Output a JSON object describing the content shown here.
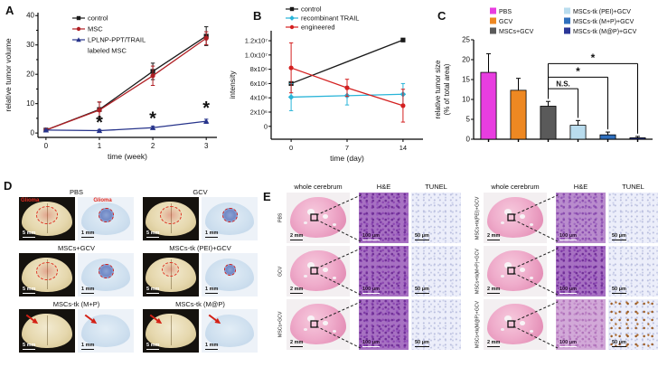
{
  "panel_labels": {
    "A": "A",
    "B": "B",
    "C": "C",
    "D": "D",
    "E": "E"
  },
  "chart_data": [
    {
      "id": "A",
      "type": "line",
      "xlabel": "time (week)",
      "ylabel": "relative tumor volume",
      "xlim": [
        -0.15,
        3.2
      ],
      "ylim": [
        -1.5,
        41
      ],
      "xticks": [
        0,
        1,
        2,
        3
      ],
      "yticks": [
        0,
        10,
        20,
        30,
        40
      ],
      "yminor": [
        5,
        15,
        25,
        35
      ],
      "legend_position": "top-left-inside",
      "grid": false,
      "series": [
        {
          "name": "control",
          "color": "#1a1a1a",
          "marker": "square",
          "x": [
            0,
            1,
            2,
            3
          ],
          "y": [
            1,
            8,
            21,
            33
          ],
          "err": [
            0.3,
            2.5,
            2.8,
            3.2
          ]
        },
        {
          "name": "MSC",
          "color": "#b01f24",
          "marker": "circle",
          "x": [
            0,
            1,
            2,
            3
          ],
          "y": [
            1,
            7.8,
            19.5,
            32.3
          ],
          "err": [
            0.3,
            2.8,
            3.3,
            2.2
          ]
        },
        {
          "name": "LPLNP-PPT/TRAIL\nlabeled MSC",
          "color": "#27348b",
          "marker": "triangle",
          "x": [
            0,
            1,
            2,
            3
          ],
          "y": [
            1,
            0.8,
            1.8,
            4
          ],
          "err": [
            0.2,
            0.4,
            0.5,
            0.7
          ]
        }
      ],
      "annotations": [
        {
          "x": 1,
          "y": 1.6,
          "text": "*"
        },
        {
          "x": 2,
          "y": 3.0,
          "text": "*"
        },
        {
          "x": 3,
          "y": 6.5,
          "text": "*"
        }
      ]
    },
    {
      "id": "B",
      "type": "line",
      "xlabel": "time (day)",
      "ylabel": "intensity",
      "xlim": [
        -2.5,
        16.5
      ],
      "ylim": [
        -1800000,
        13400000
      ],
      "xticks": [
        0,
        7,
        14
      ],
      "yticks": [
        {
          "v": 0,
          "l": "0"
        },
        {
          "v": 2000000,
          "l": "2x10⁶"
        },
        {
          "v": 4000000,
          "l": "4x10⁶"
        },
        {
          "v": 6000000,
          "l": "6x10⁶"
        },
        {
          "v": 8000000,
          "l": "8x10⁶"
        },
        {
          "v": 10000000,
          "l": "1.0x10⁷"
        },
        {
          "v": 12000000,
          "l": "1.2x10⁷"
        }
      ],
      "legend_position": "top",
      "grid": false,
      "series": [
        {
          "name": "control",
          "color": "#1a1a1a",
          "marker": "square",
          "x": [
            0,
            14
          ],
          "y": [
            6000000,
            12100000
          ],
          "err": [
            0,
            0
          ]
        },
        {
          "name": "recombinant TRAIL",
          "color": "#29b4d8",
          "marker": "diamond",
          "x": [
            0,
            7,
            14
          ],
          "y": [
            4100000,
            4300000,
            4500000
          ],
          "err": [
            1900000,
            1300000,
            1500000
          ]
        },
        {
          "name": "engineered",
          "color": "#d42020",
          "marker": "circle",
          "x": [
            0,
            7,
            14
          ],
          "y": [
            8200000,
            5400000,
            2900000
          ],
          "err": [
            3500000,
            1200000,
            2300000
          ]
        }
      ]
    },
    {
      "id": "C",
      "type": "bar",
      "ylabel_lines": [
        "relative tumor size",
        "(% of total area)"
      ],
      "ylim": [
        0,
        25
      ],
      "yticks": [
        0,
        5,
        10,
        15,
        20,
        25
      ],
      "legend_position": "top",
      "grid": false,
      "categories": [
        "PBS",
        "GCV",
        "MSCs+GCV",
        "MSCs-tk (PEI)+GCV",
        "MSCs-tk (M+P)+GCV",
        "MSCs-tk (M@P)+GCV"
      ],
      "values": [
        16.8,
        12.3,
        8.3,
        3.5,
        1.1,
        0.35
      ],
      "errors": [
        4.7,
        3.0,
        1.2,
        1.2,
        0.7,
        0.35
      ],
      "colors": [
        "#e83de0",
        "#ee8822",
        "#5a5a5a",
        "#b9dcee",
        "#2f6fbd",
        "#2a3697"
      ],
      "significance": [
        {
          "from": 2,
          "to": 3,
          "y": 12.7,
          "label": "N.S."
        },
        {
          "from": 2,
          "to": 4,
          "y": 15.6,
          "label": "*"
        },
        {
          "from": 2,
          "to": 5,
          "y": 19.0,
          "label": "*"
        }
      ]
    }
  ],
  "panelD": {
    "photo_scale": "5 mm",
    "slice_scale": "1 mm",
    "glioma_label": "Glioma",
    "groups": [
      {
        "title": "PBS"
      },
      {
        "title": "GCV"
      },
      {
        "title": "MSCs+GCV"
      },
      {
        "title": "MSCs-tk (PEI)+GCV"
      },
      {
        "title": "MSCs-tk (M+P)"
      },
      {
        "title": "MSCs-tk (M@P)"
      }
    ]
  },
  "panelE": {
    "col_headers": [
      "whole cerebrum",
      "H&E",
      "TUNEL"
    ],
    "rows_left": [
      "PBS",
      "GCV",
      "MSCs+GCV"
    ],
    "rows_right": [
      "MSCs+tk(PEI)+GCV",
      "MSCs+tk(M+P)+GCV",
      "MSCs+tk(M@P)+GCV"
    ],
    "scale_cerebrum": "2 mm",
    "scale_he": "100 μm",
    "scale_tunel": "50 μm"
  }
}
